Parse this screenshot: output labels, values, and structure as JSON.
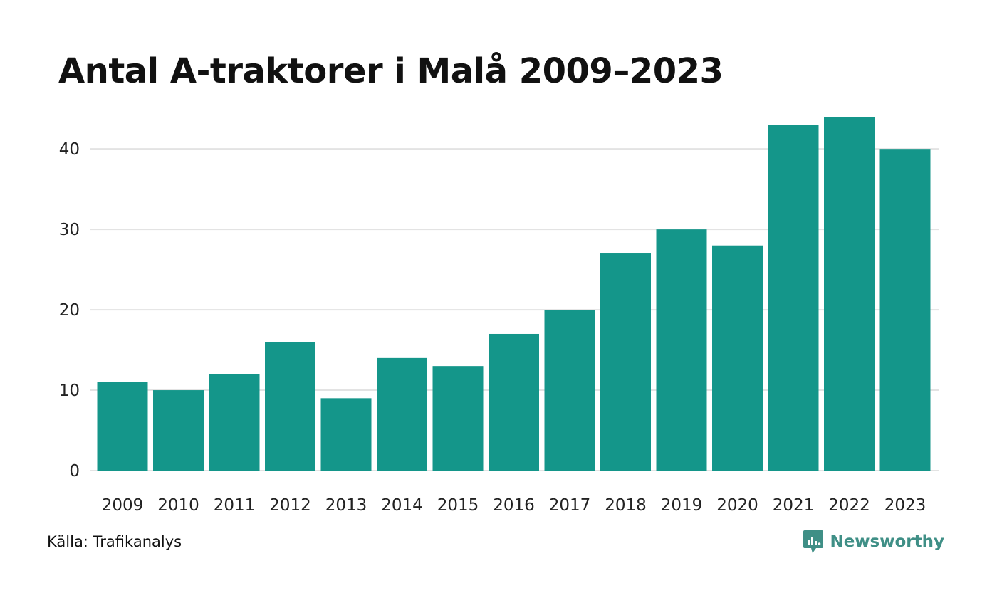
{
  "colors": {
    "bar": "#14968a",
    "grid": "#e3e3e3",
    "brand": "#3f8f86"
  },
  "chart_data": {
    "type": "bar",
    "title": "Antal A-traktorer i Malå 2009–2023",
    "xlabel": "",
    "ylabel": "",
    "ylim": [
      0,
      44
    ],
    "yticks": [
      0,
      10,
      20,
      30,
      40
    ],
    "grid": true,
    "categories": [
      "2009",
      "2010",
      "2011",
      "2012",
      "2013",
      "2014",
      "2015",
      "2016",
      "2017",
      "2018",
      "2019",
      "2020",
      "2021",
      "2022",
      "2023"
    ],
    "values": [
      11,
      10,
      12,
      16,
      9,
      14,
      13,
      17,
      20,
      27,
      30,
      28,
      43,
      44,
      40
    ]
  },
  "footer": {
    "source": "Källa: Trafikanalys",
    "brand": "Newsworthy",
    "brand_icon": "newsworthy-logo-icon"
  }
}
